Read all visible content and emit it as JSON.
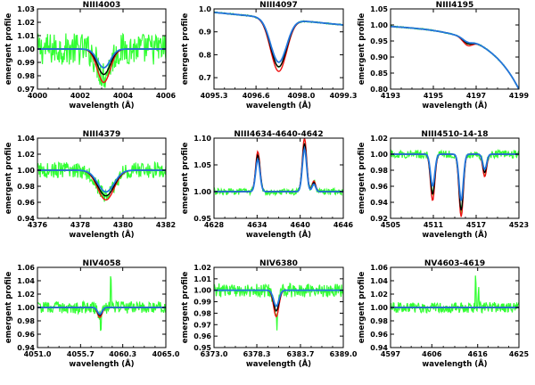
{
  "figure": {
    "xlabel": "wavelength (Å)",
    "ylabel": "emergent profile",
    "legend": "none"
  },
  "colors": {
    "observed": "#33ff33",
    "model_red": "#ee1111",
    "model_black": "#000000",
    "model_blue": "#2277dd"
  },
  "chart_data": [
    {
      "type": "line",
      "title": "NIII4003",
      "xlabel": "wavelength (Å)",
      "ylabel": "emergent profile",
      "xlim": [
        4000,
        4006
      ],
      "ylim": [
        0.97,
        1.03
      ],
      "xticks": [
        "4000",
        "4002",
        "4004",
        "4006"
      ],
      "yticks": [
        "0.97",
        "0.98",
        "0.99",
        "1.00",
        "1.01",
        "1.02",
        "1.03"
      ],
      "lines": [
        {
          "center": 4003.1,
          "width": 0.55,
          "depths": [
            0.025,
            0.019,
            0.014,
            0.009
          ]
        }
      ],
      "noise": 0.012,
      "continuum": 1.0,
      "slope": 0,
      "series": [
        {
          "name": "observed",
          "color": "#33ff33"
        },
        {
          "name": "model 1",
          "color": "#ee1111"
        },
        {
          "name": "model 2",
          "color": "#000000"
        },
        {
          "name": "model 3",
          "color": "#2277dd"
        }
      ]
    },
    {
      "type": "line",
      "title": "NIII4097",
      "xlabel": "wavelength (Å)",
      "ylabel": "emergent profile",
      "xlim": [
        4095.3,
        4099.3
      ],
      "ylim": [
        0.65,
        1.0
      ],
      "xticks": [
        "4095.3",
        "4096.6",
        "4098.0",
        "4099.3"
      ],
      "yticks": [
        "0.7",
        "0.8",
        "0.9",
        "1.0"
      ],
      "lines": [
        {
          "center": 4097.3,
          "width": 0.45,
          "depths": [
            0.23,
            0.21,
            0.19,
            0.175
          ]
        }
      ],
      "noise": 0.003,
      "continuum": 0.985,
      "slope": -0.055,
      "series": [
        {
          "name": "observed",
          "color": "#33ff33"
        },
        {
          "name": "model 1",
          "color": "#ee1111"
        },
        {
          "name": "model 2",
          "color": "#000000"
        },
        {
          "name": "model 3",
          "color": "#2277dd"
        }
      ]
    },
    {
      "type": "line",
      "title": "NIII4195",
      "xlabel": "wavelength (Å)",
      "ylabel": "emergent profile",
      "xlim": [
        4193,
        4199
      ],
      "ylim": [
        0.8,
        1.05
      ],
      "xticks": [
        "4193",
        "4195",
        "4197",
        "4199"
      ],
      "yticks": [
        "0.80",
        "0.85",
        "0.90",
        "0.95",
        "1.00",
        "1.05"
      ],
      "lines": [
        {
          "center": 4196.6,
          "width": 0.4,
          "depths": [
            0.02,
            0.014,
            0.01,
            0.006
          ]
        }
      ],
      "noise": 0.002,
      "continuum": 0.998,
      "slope": -0.012,
      "curve": 0.0028,
      "series": [
        {
          "name": "observed",
          "color": "#33ff33"
        },
        {
          "name": "model 1",
          "color": "#ee1111"
        },
        {
          "name": "model 2",
          "color": "#000000"
        },
        {
          "name": "model 3",
          "color": "#2277dd"
        }
      ]
    },
    {
      "type": "line",
      "title": "NIII4379",
      "xlabel": "wavelength (Å)",
      "ylabel": "emergent profile",
      "xlim": [
        4376,
        4382
      ],
      "ylim": [
        0.94,
        1.04
      ],
      "xticks": [
        "4376",
        "4378",
        "4380",
        "4382"
      ],
      "yticks": [
        "0.94",
        "0.96",
        "0.98",
        "1.00",
        "1.02",
        "1.04"
      ],
      "lines": [
        {
          "center": 4379.2,
          "width": 0.7,
          "depths": [
            0.037,
            0.032,
            0.027,
            0.022
          ]
        }
      ],
      "noise": 0.01,
      "continuum": 1.0,
      "slope": 0,
      "series": [
        {
          "name": "observed",
          "color": "#33ff33"
        },
        {
          "name": "model 1",
          "color": "#ee1111"
        },
        {
          "name": "model 2",
          "color": "#000000"
        },
        {
          "name": "model 3",
          "color": "#2277dd"
        }
      ]
    },
    {
      "type": "line",
      "title": "NIII4634-4640-4642",
      "xlabel": "wavelength (Å)",
      "ylabel": "emergent profile",
      "xlim": [
        4628,
        4646
      ],
      "ylim": [
        0.95,
        1.1
      ],
      "xticks": [
        "4628",
        "4634",
        "4640",
        "4646"
      ],
      "yticks": [
        "0.95",
        "1.00",
        "1.05",
        "1.10"
      ],
      "lines": [
        {
          "center": 4634.1,
          "width": 0.55,
          "depths": [
            -0.075,
            -0.068,
            -0.06,
            -0.05
          ]
        },
        {
          "center": 4640.6,
          "width": 0.55,
          "depths": [
            -0.1,
            -0.09,
            -0.08,
            -0.068
          ]
        },
        {
          "center": 4641.9,
          "width": 0.45,
          "depths": [
            -0.02,
            -0.017,
            -0.014,
            -0.011
          ]
        }
      ],
      "noise": 0.006,
      "continuum": 1.0,
      "slope": 0,
      "series": [
        {
          "name": "observed",
          "color": "#33ff33"
        },
        {
          "name": "model 1",
          "color": "#ee1111"
        },
        {
          "name": "model 2",
          "color": "#000000"
        },
        {
          "name": "model 3",
          "color": "#2277dd"
        }
      ]
    },
    {
      "type": "line",
      "title": "NIII4510-14-18",
      "xlabel": "wavelength (Å)",
      "ylabel": "emergent profile",
      "xlim": [
        4505,
        4523
      ],
      "ylim": [
        0.92,
        1.02
      ],
      "xticks": [
        "4505",
        "4511",
        "4517",
        "4523"
      ],
      "yticks": [
        "0.92",
        "0.94",
        "0.96",
        "0.98",
        "1.00",
        "1.02"
      ],
      "lines": [
        {
          "center": 4510.9,
          "width": 0.55,
          "depths": [
            0.058,
            0.05,
            0.04,
            0.032
          ]
        },
        {
          "center": 4514.9,
          "width": 0.55,
          "depths": [
            0.078,
            0.07,
            0.058,
            0.048
          ]
        },
        {
          "center": 4518.2,
          "width": 0.5,
          "depths": [
            0.028,
            0.023,
            0.019,
            0.014
          ]
        }
      ],
      "noise": 0.005,
      "continuum": 1.0,
      "slope": 0,
      "series": [
        {
          "name": "observed",
          "color": "#33ff33"
        },
        {
          "name": "model 1",
          "color": "#ee1111"
        },
        {
          "name": "model 2",
          "color": "#000000"
        },
        {
          "name": "model 3",
          "color": "#2277dd"
        }
      ]
    },
    {
      "type": "line",
      "title": "NIV4058",
      "xlabel": "wavelength (Å)",
      "ylabel": "emergent profile",
      "xlim": [
        4051.0,
        4065.0
      ],
      "ylim": [
        0.94,
        1.06
      ],
      "xticks": [
        "4051.0",
        "4055.7",
        "4060.3",
        "4065.0"
      ],
      "yticks": [
        "0.94",
        "0.96",
        "0.98",
        "1.00",
        "1.02",
        "1.04",
        "1.06"
      ],
      "lines": [
        {
          "center": 4057.8,
          "width": 0.45,
          "depths": [
            0.015,
            0.012,
            0.01,
            0.008
          ]
        }
      ],
      "noise": 0.009,
      "continuum": 1.0,
      "slope": 0,
      "spikes": [
        {
          "x": 4059.0,
          "dy": 0.05
        },
        {
          "x": 4057.9,
          "dy": -0.025
        }
      ],
      "series": [
        {
          "name": "observed",
          "color": "#33ff33"
        },
        {
          "name": "model 1",
          "color": "#ee1111"
        },
        {
          "name": "model 2",
          "color": "#000000"
        },
        {
          "name": "model 3",
          "color": "#2277dd"
        }
      ]
    },
    {
      "type": "line",
      "title": "NIV6380",
      "xlabel": "wavelength (Å)",
      "ylabel": "emergent profile",
      "xlim": [
        6373.0,
        6389.0
      ],
      "ylim": [
        0.95,
        1.02
      ],
      "xticks": [
        "6373.0",
        "6378.3",
        "6383.7",
        "6389.0"
      ],
      "yticks": [
        "0.95",
        "0.96",
        "0.97",
        "0.98",
        "0.99",
        "1.00",
        "1.01",
        "1.02"
      ],
      "lines": [
        {
          "center": 6380.7,
          "width": 0.6,
          "depths": [
            0.023,
            0.018,
            0.014,
            0.01
          ]
        }
      ],
      "noise": 0.006,
      "continuum": 1.0,
      "slope": 0,
      "spikes": [
        {
          "x": 6380.8,
          "dy": -0.02
        }
      ],
      "series": [
        {
          "name": "observed",
          "color": "#33ff33"
        },
        {
          "name": "model 1",
          "color": "#ee1111"
        },
        {
          "name": "model 2",
          "color": "#000000"
        },
        {
          "name": "model 3",
          "color": "#2277dd"
        }
      ]
    },
    {
      "type": "line",
      "title": "NV4603-4619",
      "xlabel": "wavelength (Å)",
      "ylabel": "emergent profile",
      "xlim": [
        4597,
        4625
      ],
      "ylim": [
        0.94,
        1.06
      ],
      "xticks": [
        "4597",
        "4606",
        "4616",
        "4625"
      ],
      "yticks": [
        "0.94",
        "0.96",
        "0.98",
        "1.00",
        "1.02",
        "1.04",
        "1.06"
      ],
      "lines": [],
      "noise": 0.008,
      "continuum": 1.0,
      "slope": 0,
      "spikes": [
        {
          "x": 4615.6,
          "dy": 0.04
        },
        {
          "x": 4616.2,
          "dy": 0.025
        }
      ],
      "series": [
        {
          "name": "observed",
          "color": "#33ff33"
        },
        {
          "name": "model 1",
          "color": "#ee1111"
        },
        {
          "name": "model 2",
          "color": "#000000"
        },
        {
          "name": "model 3",
          "color": "#2277dd"
        }
      ]
    }
  ]
}
